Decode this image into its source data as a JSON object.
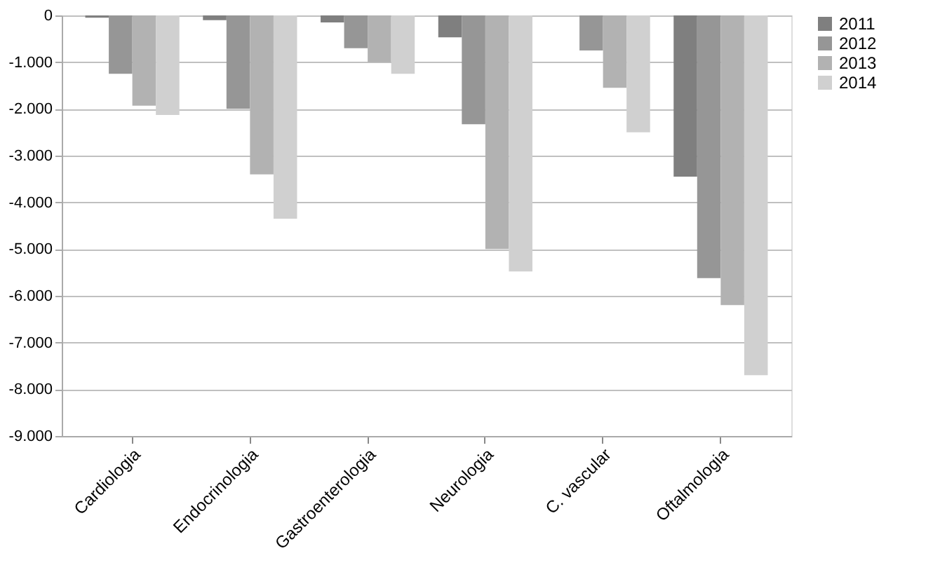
{
  "chart_data": {
    "type": "bar",
    "categories": [
      "Cardiologia",
      "Endocrinologia",
      "Gastroenterologia",
      "Neurologia",
      "C. vascular",
      "Oftalmologia"
    ],
    "series": [
      {
        "name": "2011",
        "color": "#7f7f7f",
        "values": [
          -50,
          -100,
          -150,
          -470,
          0,
          -3450
        ]
      },
      {
        "name": "2012",
        "color": "#969696",
        "values": [
          -1250,
          -2000,
          -700,
          -2330,
          -750,
          -5620
        ]
      },
      {
        "name": "2013",
        "color": "#b2b2b2",
        "values": [
          -1930,
          -3400,
          -1000,
          -5000,
          -1550,
          -6200
        ]
      },
      {
        "name": "2014",
        "color": "#d0d0d0",
        "values": [
          -2130,
          -4350,
          -1250,
          -5480,
          -2500,
          -7700
        ]
      }
    ],
    "ylim": [
      -9000,
      0
    ],
    "yticks": [
      0,
      {
        "value": -1000,
        "label": "-1.000"
      },
      {
        "value": -2000,
        "label": "-2.000"
      },
      {
        "value": -3000,
        "label": "-3.000"
      },
      {
        "value": -4000,
        "label": "-4.000"
      },
      {
        "value": -5000,
        "label": "-5.000"
      },
      {
        "value": -6000,
        "label": "-6.000"
      },
      {
        "value": -7000,
        "label": "-7.000"
      },
      {
        "value": -8000,
        "label": "-8.000"
      },
      {
        "value": -9000,
        "label": "-9.000"
      }
    ],
    "grid": "y",
    "legend": "right"
  }
}
